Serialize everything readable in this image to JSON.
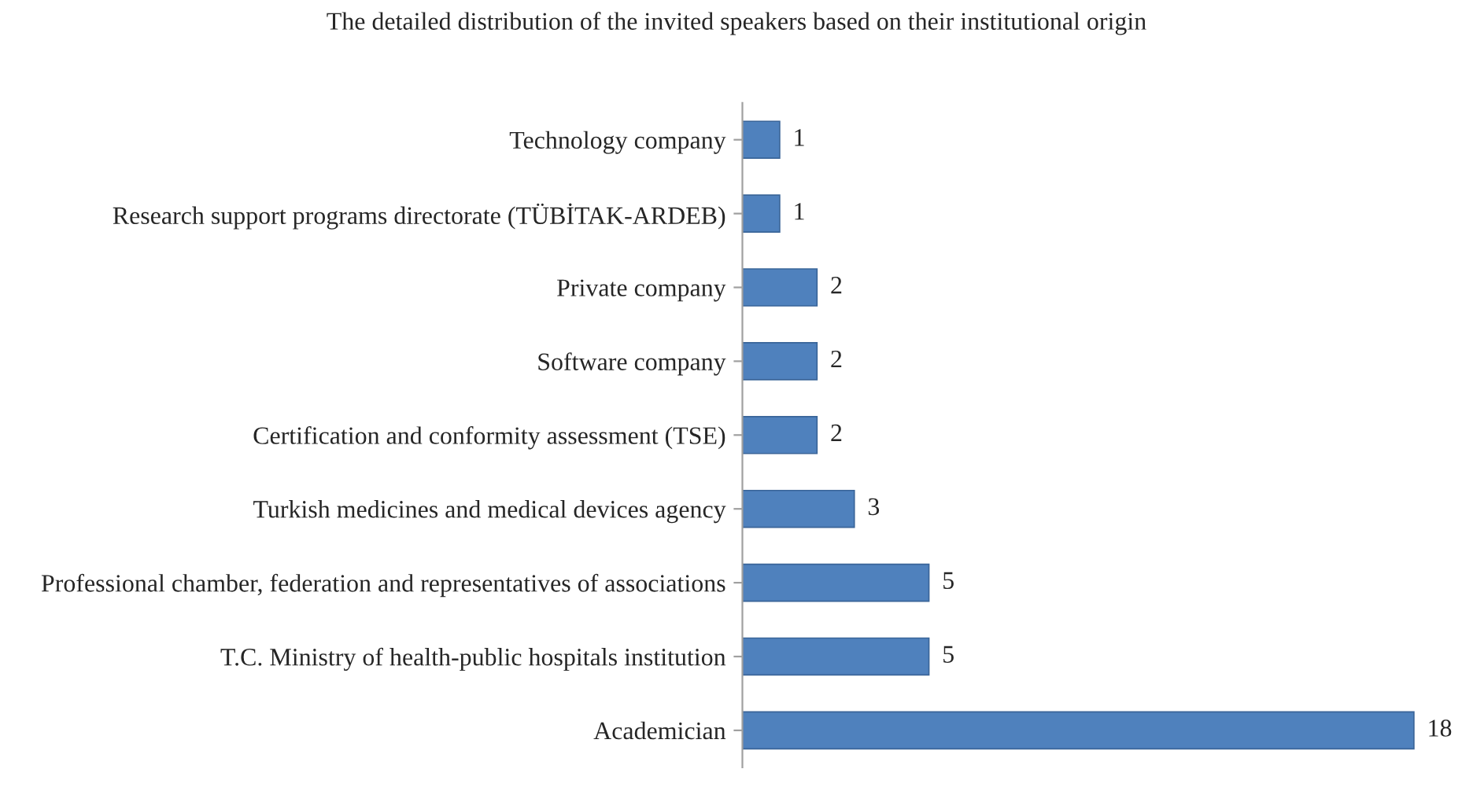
{
  "chart_data": {
    "type": "bar",
    "orientation": "horizontal",
    "title": "The detailed distribution of the invited speakers based on their institutional origin",
    "categories": [
      "Technology company",
      "Research support programs directorate (TÜBİTAK-ARDEB)",
      "Private company",
      "Software company",
      "Certification and conformity assessment (TSE)",
      "Turkish medicines and medical devices agency",
      "Professional chamber, federation and representatives of associations",
      "T.C. Ministry of health-public hospitals institution",
      "Academician"
    ],
    "values": [
      1,
      1,
      2,
      2,
      2,
      3,
      5,
      5,
      18
    ],
    "color": "#4f81bd",
    "data_labels": true,
    "grid": false,
    "legend": false
  }
}
